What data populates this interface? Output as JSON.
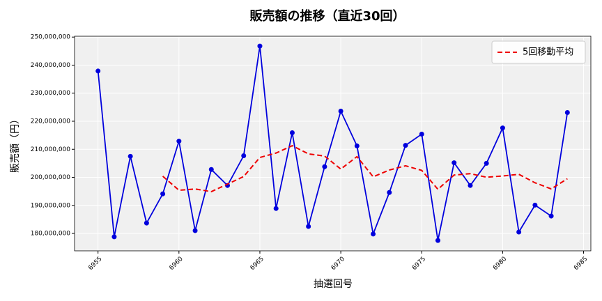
{
  "chart_data": {
    "type": "line",
    "title": "販売額の推移（直近30回）",
    "xlabel": "抽選回号",
    "ylabel": "販売額（円）",
    "x": [
      6955,
      6956,
      6957,
      6958,
      6959,
      6960,
      6961,
      6962,
      6963,
      6964,
      6965,
      6966,
      6967,
      6968,
      6969,
      6970,
      6971,
      6972,
      6973,
      6974,
      6975,
      6976,
      6977,
      6978,
      6979,
      6980,
      6981,
      6982,
      6983,
      6984
    ],
    "series": [
      {
        "color": "#0000dd",
        "marker": true,
        "dashed": false,
        "values": [
          237900000,
          178800000,
          207500000,
          183700000,
          194100000,
          212900000,
          181000000,
          202800000,
          197100000,
          207700000,
          246800000,
          188900000,
          215900000,
          182500000,
          203800000,
          223600000,
          211200000,
          179800000,
          194600000,
          211400000,
          215400000,
          177500000,
          205200000,
          197100000,
          205000000,
          217600000,
          180500000,
          190100000,
          186200000,
          223100000
        ]
      },
      {
        "name": "5回移動平均",
        "color": "#ee0000",
        "marker": false,
        "dashed": true,
        "values": [
          null,
          null,
          null,
          null,
          200400000,
          195400000,
          195840000,
          194900000,
          197580000,
          200300000,
          207080000,
          208660000,
          211280000,
          208360000,
          207580000,
          202940000,
          207400000,
          200180000,
          202600000,
          204120000,
          202480000,
          195740000,
          200820000,
          201320000,
          200040000,
          200480000,
          201080000,
          198060000,
          195880000,
          199500000
        ]
      }
    ],
    "xlim": [
      6953.55,
      6985.45
    ],
    "xticks": [
      6955,
      6960,
      6965,
      6970,
      6975,
      6980,
      6985
    ],
    "ylim": [
      173800000,
      250300000
    ],
    "yticks": [
      {
        "value": 180000000,
        "label": "180,000,000"
      },
      {
        "value": 190000000,
        "label": "190,000,000"
      },
      {
        "value": 200000000,
        "label": "200,000,000"
      },
      {
        "value": 210000000,
        "label": "210,000,000"
      },
      {
        "value": 220000000,
        "label": "220,000,000"
      },
      {
        "value": 230000000,
        "label": "230,000,000"
      },
      {
        "value": 240000000,
        "label": "240,000,000"
      },
      {
        "value": 250000000,
        "label": "250,000,000"
      }
    ],
    "grid": true,
    "legend": "upper right"
  }
}
